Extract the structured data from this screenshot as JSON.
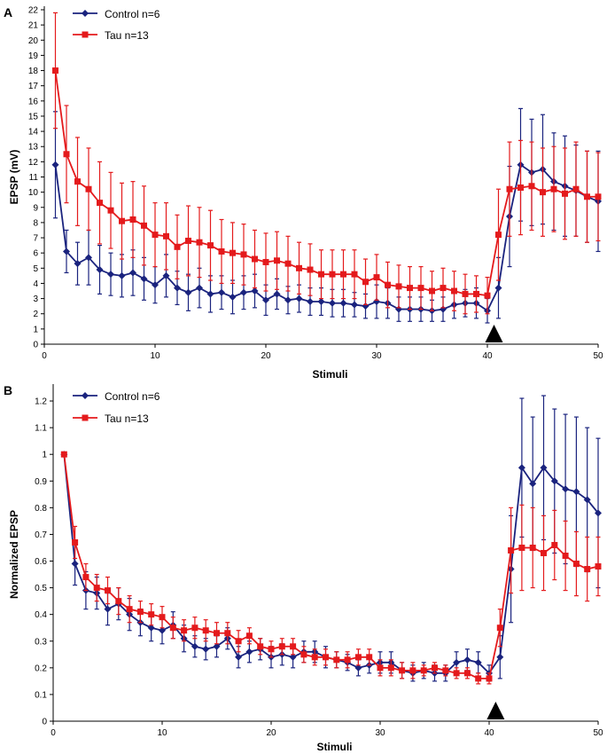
{
  "chart_data": [
    {
      "panel_label": "A",
      "type": "line",
      "xlabel": "Stimuli",
      "ylabel": "EPSP (mV)",
      "xlim": [
        0,
        50
      ],
      "ylim": [
        0,
        22
      ],
      "xticks": [
        0,
        10,
        20,
        30,
        40,
        50
      ],
      "yticks": [
        0,
        1,
        2,
        3,
        4,
        5,
        6,
        7,
        8,
        9,
        10,
        11,
        12,
        13,
        14,
        15,
        16,
        17,
        18,
        19,
        20,
        21,
        22
      ],
      "grid": false,
      "legend_position": "top-left",
      "marker_annotation": {
        "x": 40.6,
        "symbol": "up-triangle"
      },
      "x": [
        1,
        2,
        3,
        4,
        5,
        6,
        7,
        8,
        9,
        10,
        11,
        12,
        13,
        14,
        15,
        16,
        17,
        18,
        19,
        20,
        21,
        22,
        23,
        24,
        25,
        26,
        27,
        28,
        29,
        30,
        31,
        32,
        33,
        34,
        35,
        36,
        37,
        38,
        39,
        40,
        41,
        42,
        43,
        44,
        45,
        46,
        47,
        48,
        49,
        50
      ],
      "series": [
        {
          "name": "Control n=6",
          "color": "#1a237e",
          "marker": "diamond",
          "values": [
            11.8,
            6.1,
            5.3,
            5.7,
            4.9,
            4.6,
            4.5,
            4.7,
            4.3,
            3.9,
            4.5,
            3.7,
            3.4,
            3.7,
            3.3,
            3.4,
            3.1,
            3.4,
            3.5,
            2.9,
            3.3,
            2.9,
            3.0,
            2.8,
            2.8,
            2.7,
            2.7,
            2.6,
            2.5,
            2.8,
            2.7,
            2.3,
            2.3,
            2.3,
            2.2,
            2.3,
            2.6,
            2.7,
            2.7,
            2.2,
            3.7,
            8.4,
            11.8,
            11.3,
            11.5,
            10.7,
            10.4,
            10.1,
            9.7,
            9.4
          ],
          "errors": [
            3.5,
            1.4,
            1.4,
            1.8,
            1.6,
            1.4,
            1.4,
            1.5,
            1.4,
            1.2,
            1.4,
            1.1,
            1.2,
            1.3,
            1.2,
            1.1,
            1.1,
            1.1,
            1.1,
            1.0,
            1.0,
            0.9,
            0.9,
            0.9,
            0.9,
            0.9,
            0.9,
            0.8,
            0.8,
            1.1,
            1.0,
            0.8,
            0.8,
            0.8,
            0.7,
            0.8,
            0.9,
            0.9,
            1.0,
            0.8,
            2.0,
            3.3,
            3.7,
            3.5,
            3.6,
            3.2,
            3.3,
            3.0,
            3.0,
            3.3
          ]
        },
        {
          "name": "Tau n=13",
          "color": "#e41a1c",
          "marker": "square",
          "values": [
            18.0,
            12.5,
            10.7,
            10.2,
            9.3,
            8.8,
            8.1,
            8.2,
            7.8,
            7.2,
            7.1,
            6.4,
            6.8,
            6.7,
            6.5,
            6.1,
            6.0,
            5.9,
            5.6,
            5.4,
            5.5,
            5.3,
            5.0,
            4.9,
            4.6,
            4.6,
            4.6,
            4.6,
            4.1,
            4.4,
            3.9,
            3.8,
            3.7,
            3.7,
            3.5,
            3.7,
            3.5,
            3.3,
            3.3,
            3.2,
            7.2,
            10.2,
            10.3,
            10.4,
            10.0,
            10.2,
            9.9,
            10.2,
            9.7,
            9.7
          ],
          "errors": [
            3.8,
            3.2,
            2.9,
            2.7,
            2.7,
            2.5,
            2.5,
            2.5,
            2.6,
            2.1,
            2.2,
            2.1,
            2.3,
            2.3,
            2.3,
            2.1,
            2.0,
            2.0,
            1.9,
            1.9,
            1.9,
            1.8,
            1.7,
            1.7,
            1.6,
            1.6,
            1.6,
            1.6,
            1.5,
            1.5,
            1.5,
            1.4,
            1.4,
            1.4,
            1.3,
            1.3,
            1.3,
            1.3,
            1.2,
            1.2,
            3.0,
            3.1,
            3.1,
            2.9,
            2.9,
            2.8,
            3.0,
            3.1,
            3.0,
            2.9
          ]
        }
      ]
    },
    {
      "panel_label": "B",
      "type": "line",
      "xlabel": "Stimuli",
      "ylabel": "Normalized EPSP",
      "xlim": [
        0,
        50
      ],
      "ylim": [
        0,
        1.25
      ],
      "xticks": [
        0,
        10,
        20,
        30,
        40,
        50
      ],
      "yticks": [
        0,
        0.1,
        0.2,
        0.3,
        0.4,
        0.5,
        0.6,
        0.7,
        0.8,
        0.9,
        1,
        1.1,
        1.2
      ],
      "grid": false,
      "legend_position": "top-left",
      "marker_annotation": {
        "x": 40.6,
        "symbol": "up-triangle"
      },
      "x": [
        1,
        2,
        3,
        4,
        5,
        6,
        7,
        8,
        9,
        10,
        11,
        12,
        13,
        14,
        15,
        16,
        17,
        18,
        19,
        20,
        21,
        22,
        23,
        24,
        25,
        26,
        27,
        28,
        29,
        30,
        31,
        32,
        33,
        34,
        35,
        36,
        37,
        38,
        39,
        40,
        41,
        42,
        43,
        44,
        45,
        46,
        47,
        48,
        49,
        50
      ],
      "series": [
        {
          "name": "Control n=6",
          "color": "#1a237e",
          "marker": "diamond",
          "values": [
            1.0,
            0.59,
            0.49,
            0.48,
            0.42,
            0.44,
            0.4,
            0.37,
            0.35,
            0.34,
            0.36,
            0.31,
            0.28,
            0.27,
            0.28,
            0.31,
            0.24,
            0.26,
            0.27,
            0.24,
            0.25,
            0.24,
            0.26,
            0.26,
            0.24,
            0.23,
            0.22,
            0.2,
            0.21,
            0.22,
            0.22,
            0.19,
            0.18,
            0.19,
            0.18,
            0.18,
            0.22,
            0.23,
            0.22,
            0.18,
            0.24,
            0.57,
            0.95,
            0.89,
            0.95,
            0.9,
            0.87,
            0.86,
            0.83,
            0.78
          ],
          "errors": [
            0,
            0.08,
            0.07,
            0.06,
            0.06,
            0.06,
            0.06,
            0.05,
            0.05,
            0.05,
            0.05,
            0.05,
            0.04,
            0.04,
            0.04,
            0.04,
            0.04,
            0.04,
            0.04,
            0.04,
            0.04,
            0.04,
            0.04,
            0.04,
            0.04,
            0.03,
            0.03,
            0.03,
            0.03,
            0.04,
            0.04,
            0.03,
            0.03,
            0.03,
            0.03,
            0.03,
            0.04,
            0.04,
            0.04,
            0.03,
            0.08,
            0.2,
            0.26,
            0.25,
            0.27,
            0.27,
            0.28,
            0.28,
            0.27,
            0.28
          ]
        },
        {
          "name": "Tau n=13",
          "color": "#e41a1c",
          "marker": "square",
          "values": [
            1.0,
            0.67,
            0.54,
            0.5,
            0.49,
            0.45,
            0.42,
            0.41,
            0.4,
            0.39,
            0.35,
            0.34,
            0.35,
            0.34,
            0.33,
            0.33,
            0.3,
            0.32,
            0.28,
            0.27,
            0.28,
            0.28,
            0.25,
            0.24,
            0.24,
            0.23,
            0.23,
            0.24,
            0.24,
            0.2,
            0.2,
            0.19,
            0.19,
            0.19,
            0.2,
            0.19,
            0.18,
            0.18,
            0.16,
            0.16,
            0.35,
            0.64,
            0.65,
            0.65,
            0.63,
            0.66,
            0.62,
            0.59,
            0.57,
            0.58
          ],
          "errors": [
            0,
            0.06,
            0.05,
            0.05,
            0.05,
            0.05,
            0.05,
            0.04,
            0.04,
            0.04,
            0.04,
            0.04,
            0.04,
            0.04,
            0.04,
            0.04,
            0.04,
            0.03,
            0.03,
            0.03,
            0.03,
            0.03,
            0.03,
            0.03,
            0.03,
            0.03,
            0.03,
            0.03,
            0.03,
            0.03,
            0.03,
            0.03,
            0.03,
            0.02,
            0.02,
            0.02,
            0.02,
            0.02,
            0.02,
            0.02,
            0.07,
            0.16,
            0.16,
            0.15,
            0.14,
            0.13,
            0.13,
            0.12,
            0.12,
            0.11
          ]
        }
      ]
    }
  ]
}
